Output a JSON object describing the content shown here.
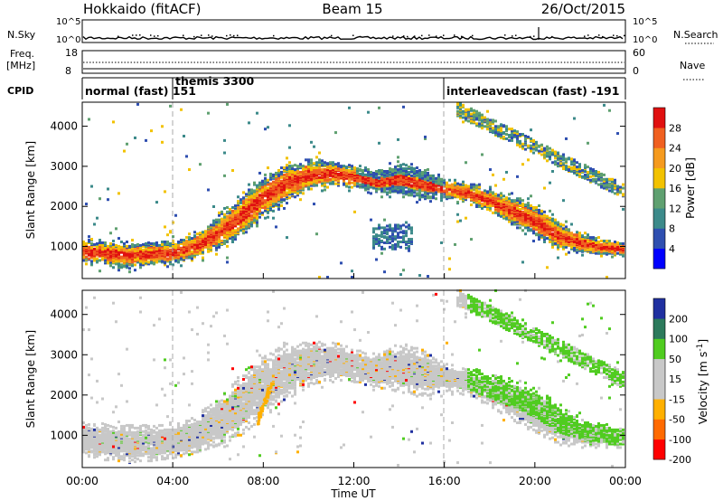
{
  "header": {
    "station": "Hokkaido (fitACF)",
    "beam": "Beam 15",
    "date": "26/Oct/2015"
  },
  "side_labels": {
    "nsky": "N.Sky",
    "freq_line1": "Freq.",
    "freq_line2": "[MHz]",
    "cpid": "CPID",
    "nsearch": "N.Search",
    "nave": "Nave"
  },
  "noise_panel": {
    "left_ticks": [
      "10^5",
      "10^0"
    ],
    "right_ticks": [
      "10^5",
      "10^0"
    ]
  },
  "freq_panel": {
    "left_ticks": [
      "18",
      "8"
    ],
    "right_ticks": [
      "60",
      "0"
    ]
  },
  "cpid_panel": {
    "segments": [
      {
        "label": "normal (fast) 151",
        "start_hour": 0
      },
      {
        "label": "themis 3300",
        "start_hour": 4
      },
      {
        "label": "interleavedscan (fast) -191",
        "start_hour": 16
      }
    ]
  },
  "colors": {
    "power": [
      "#0000ff",
      "#2f4fb0",
      "#3c8a8a",
      "#5fa070",
      "#f2c200",
      "#f59a1e",
      "#f06020",
      "#e01010"
    ],
    "velocity": [
      "#ff0000",
      "#ff6a00",
      "#ffb000",
      "#c8c8c8",
      "#c8c8c8",
      "#50cc20",
      "#2c7a5c",
      "#2030a0"
    ]
  },
  "chart_data": [
    {
      "type": "heatmap",
      "panel": "power",
      "ylabel": "Slant Range [km]",
      "yticks": [
        "1000",
        "2000",
        "3000",
        "4000"
      ],
      "xlim_hours": [
        0,
        24
      ],
      "ylim": [
        200,
        4600
      ],
      "colorbar_label": "Power [dB]",
      "colorbar_ticks": [
        "4",
        "8",
        "12",
        "16",
        "20",
        "24",
        "28"
      ],
      "band": {
        "x": [
          0,
          2,
          4,
          5,
          6,
          7,
          8,
          9,
          10,
          11,
          12,
          13,
          14,
          15,
          16,
          17,
          18,
          19,
          20,
          21,
          22,
          23,
          24
        ],
        "center_km": [
          850,
          750,
          820,
          1000,
          1300,
          1750,
          2200,
          2550,
          2750,
          2800,
          2700,
          2550,
          2650,
          2500,
          2400,
          2300,
          2100,
          1850,
          1600,
          1250,
          1050,
          950,
          900
        ],
        "width_km": [
          500,
          550,
          500,
          550,
          700,
          900,
          900,
          800,
          650,
          550,
          500,
          500,
          700,
          700,
          400,
          400,
          500,
          600,
          700,
          600,
          450,
          350,
          300
        ]
      },
      "blob": {
        "x": [
          12.8,
          14.6
        ],
        "y": [
          900,
          1500
        ]
      },
      "upper_arc": {
        "x": [
          16.5,
          24
        ],
        "y": [
          4400,
          2300
        ]
      }
    },
    {
      "type": "heatmap",
      "panel": "velocity",
      "ylabel": "Slant Range [km]",
      "yticks": [
        "1000",
        "2000",
        "3000",
        "4000"
      ],
      "xlim_hours": [
        0,
        24
      ],
      "ylim": [
        200,
        4600
      ],
      "colorbar_label": "Velocity [m s^-1]",
      "colorbar_ticks": [
        "200",
        "100",
        "50",
        "15",
        "-15",
        "-50",
        "-100",
        "-200"
      ],
      "xticks": [
        "00:00",
        "04:00",
        "08:00",
        "12:00",
        "16:00",
        "20:00",
        "00:00"
      ],
      "xlabel": "Time UT"
    }
  ]
}
